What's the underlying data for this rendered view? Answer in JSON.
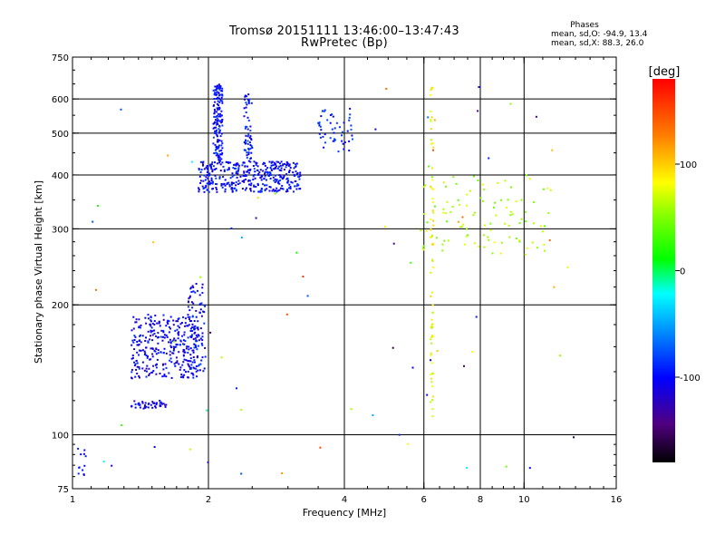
{
  "header": {
    "title_line1": "Tromsø 20151111 13:46:00–13:47:43",
    "title_line2": "RwPretec (Bp)",
    "phases_title": "Phases",
    "phases_line1": "mean, sd,O: -94.9, 13.4",
    "phases_line2": "mean, sd,X: 88.3, 26.0"
  },
  "colorbar": {
    "label": "[deg]",
    "ticks": [
      100,
      0,
      -100
    ],
    "range": [
      -180,
      180
    ]
  },
  "chart_data": {
    "type": "scatter",
    "xlabel": "Frequency [MHz]",
    "ylabel": "Stationary phase Virtual Height [km]",
    "xscale": "log",
    "yscale": "log",
    "xlim": [
      1,
      16
    ],
    "ylim": [
      75,
      750
    ],
    "xticks": [
      1,
      2,
      4,
      6,
      8,
      10,
      16
    ],
    "yticks": [
      75,
      100,
      200,
      300,
      400,
      500,
      600,
      750
    ],
    "grid_x": [
      2,
      4,
      6,
      8,
      10
    ],
    "grid_y": [
      100,
      200,
      300,
      400,
      500,
      600
    ],
    "color_by": "phase_deg",
    "clusters": [
      {
        "name": "O-trace low E",
        "x": [
          1.02,
          1.07
        ],
        "y": [
          78,
          95
        ],
        "n": 12,
        "phase": -100
      },
      {
        "name": "O-trace E band",
        "x": [
          1.35,
          1.62
        ],
        "y": [
          115,
          120
        ],
        "n": 45,
        "phase": -110
      },
      {
        "name": "O-trace Es",
        "x": [
          1.35,
          1.9
        ],
        "y": [
          135,
          190
        ],
        "n": 320,
        "phase": -105
      },
      {
        "name": "O-trace Es upper",
        "x": [
          1.8,
          1.97
        ],
        "y": [
          140,
          225
        ],
        "n": 90,
        "phase": -100
      },
      {
        "name": "O-trace F lower",
        "x": [
          1.9,
          3.2
        ],
        "y": [
          365,
          430
        ],
        "n": 380,
        "phase": -100
      },
      {
        "name": "O-trace F cusp",
        "x": [
          2.05,
          2.15
        ],
        "y": [
          430,
          650
        ],
        "n": 160,
        "phase": -98
      },
      {
        "name": "O-trace F streak",
        "x": [
          2.4,
          2.5
        ],
        "y": [
          430,
          620
        ],
        "n": 60,
        "phase": -95
      },
      {
        "name": "O-trace F top",
        "x": [
          3.5,
          4.2
        ],
        "y": [
          450,
          570
        ],
        "n": 50,
        "phase": -92
      },
      {
        "name": "X-trace 6.2 MHz",
        "x": [
          6.2,
          6.3
        ],
        "y": [
          110,
          640
        ],
        "n": 70,
        "phase": 80
      },
      {
        "name": "X-trace F",
        "x": [
          5.8,
          11.5
        ],
        "y": [
          260,
          400
        ],
        "n": 100,
        "phase": 60
      },
      {
        "name": "scatter",
        "x": [
          1.1,
          13
        ],
        "y": [
          80,
          650
        ],
        "n": 70,
        "phase": 0
      }
    ]
  }
}
